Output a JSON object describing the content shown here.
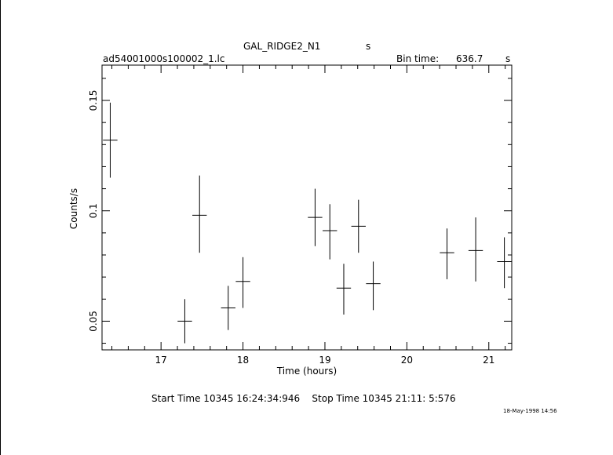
{
  "chart_data": {
    "type": "scatter",
    "title": "GAL_RIDGE2_N1",
    "title_suffix": "s",
    "file_label": "ad54001000s100002_1.lc",
    "bin_time_label": "Bin time:",
    "bin_time_value": "636.7",
    "bin_time_unit": "s",
    "xlabel": "Time (hours)",
    "ylabel": "Counts/s",
    "xlim": [
      16.28,
      21.28
    ],
    "ylim": [
      0.037,
      0.166
    ],
    "x_ticks": [
      17,
      18,
      19,
      20,
      21
    ],
    "x_tick_labels": [
      "17",
      "18",
      "19",
      "20",
      "21"
    ],
    "y_ticks": [
      0.05,
      0.1,
      0.15
    ],
    "y_tick_labels": [
      "0.05",
      "0.1",
      "0.15"
    ],
    "grid": false,
    "points": [
      {
        "x": 16.38,
        "y": 0.132,
        "xerr": 0.088,
        "y_low": 0.115,
        "y_high": 0.149
      },
      {
        "x": 17.29,
        "y": 0.05,
        "xerr": 0.088,
        "y_low": 0.04,
        "y_high": 0.06
      },
      {
        "x": 17.47,
        "y": 0.098,
        "xerr": 0.088,
        "y_low": 0.081,
        "y_high": 0.116
      },
      {
        "x": 17.82,
        "y": 0.056,
        "xerr": 0.088,
        "y_low": 0.046,
        "y_high": 0.066
      },
      {
        "x": 18.0,
        "y": 0.068,
        "xerr": 0.088,
        "y_low": 0.056,
        "y_high": 0.079
      },
      {
        "x": 18.88,
        "y": 0.097,
        "xerr": 0.088,
        "y_low": 0.084,
        "y_high": 0.11
      },
      {
        "x": 19.06,
        "y": 0.091,
        "xerr": 0.088,
        "y_low": 0.078,
        "y_high": 0.103
      },
      {
        "x": 19.23,
        "y": 0.065,
        "xerr": 0.088,
        "y_low": 0.053,
        "y_high": 0.076
      },
      {
        "x": 19.41,
        "y": 0.093,
        "xerr": 0.088,
        "y_low": 0.081,
        "y_high": 0.105
      },
      {
        "x": 19.59,
        "y": 0.067,
        "xerr": 0.088,
        "y_low": 0.055,
        "y_high": 0.077
      },
      {
        "x": 20.49,
        "y": 0.081,
        "xerr": 0.088,
        "y_low": 0.069,
        "y_high": 0.092
      },
      {
        "x": 20.84,
        "y": 0.082,
        "xerr": 0.088,
        "y_low": 0.068,
        "y_high": 0.097
      },
      {
        "x": 21.19,
        "y": 0.077,
        "xerr": 0.088,
        "y_low": 0.065,
        "y_high": 0.088
      }
    ]
  },
  "footer": {
    "time_range": "Start Time 10345 16:24:34:946    Stop Time 10345 21:11: 5:576",
    "timestamp": "18-May-1998 14:56"
  }
}
